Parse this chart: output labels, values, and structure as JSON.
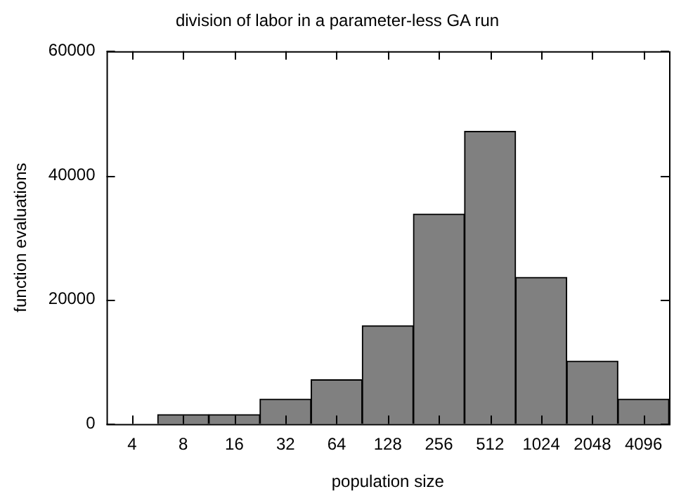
{
  "chart_data": {
    "type": "bar",
    "title": "division of labor in a parameter-less GA run",
    "xlabel": "population size",
    "ylabel": "function evaluations",
    "categories": [
      "4",
      "8",
      "16",
      "32",
      "64",
      "128",
      "256",
      "512",
      "1024",
      "2048",
      "4096"
    ],
    "values": [
      0,
      1500,
      1500,
      4000,
      7100,
      15800,
      33800,
      47100,
      23600,
      10100,
      4000
    ],
    "color": "#808080",
    "ylim": [
      0,
      60000
    ],
    "yticks": [
      0,
      20000,
      40000,
      60000
    ],
    "grid": false,
    "legend": false
  }
}
